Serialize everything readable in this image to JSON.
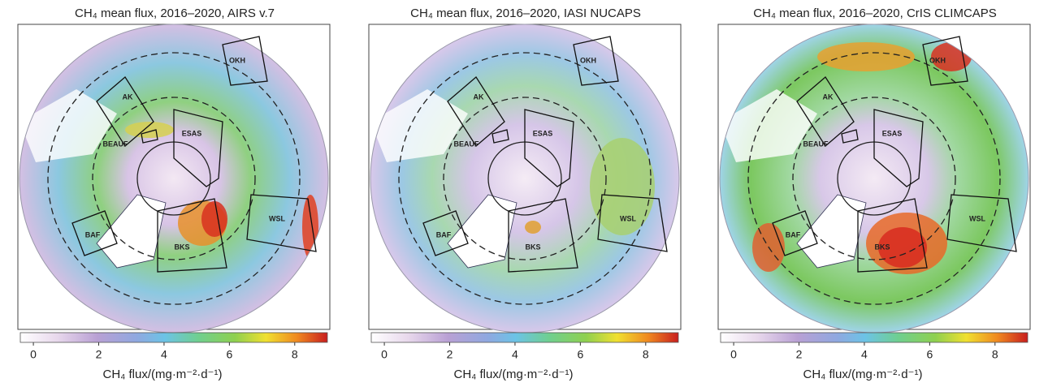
{
  "panels": [
    {
      "title": "CH₄ mean flux, 2016–2020, AIRS v.7",
      "regions": [
        "AK",
        "BEAUF",
        "ESAS",
        "OKH",
        "BAF",
        "BKS",
        "WSL"
      ],
      "colorbar": {
        "clim": [
          -0.4,
          9
        ],
        "ticks": [
          0,
          2,
          4,
          6,
          8
        ],
        "label": "CH₄ flux/(mg·m⁻²·d⁻¹)"
      }
    },
    {
      "title": "CH₄ mean flux, 2016–2020, IASI NUCAPS",
      "regions": [
        "AK",
        "BEAUF",
        "ESAS",
        "OKH",
        "BAF",
        "BKS",
        "WSL"
      ],
      "colorbar": {
        "clim": [
          -0.4,
          9
        ],
        "ticks": [
          0,
          2,
          4,
          6,
          8
        ],
        "label": "CH₄ flux/(mg·m⁻²·d⁻¹)"
      }
    },
    {
      "title": "CH₄ mean flux, 2016–2020, CrIS CLIMCAPS",
      "regions": [
        "AK",
        "BEAUF",
        "ESAS",
        "OKH",
        "BAF",
        "BKS",
        "WSL"
      ],
      "colorbar": {
        "clim": [
          -0.4,
          9
        ],
        "ticks": [
          0,
          2,
          4,
          6,
          8
        ],
        "label": "CH₄ flux/(mg·m⁻²·d⁻¹)"
      }
    }
  ]
}
